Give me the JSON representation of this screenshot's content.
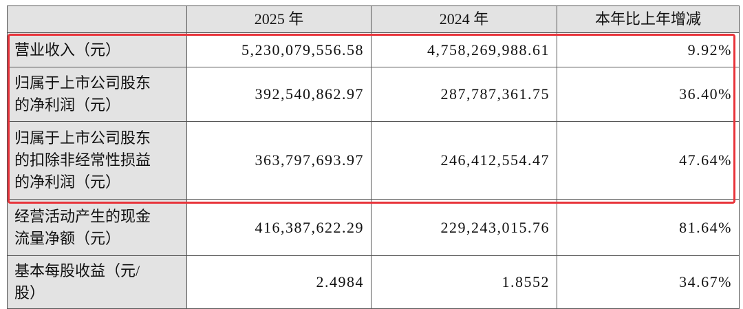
{
  "table": {
    "header": [
      "2025 年",
      "2024 年",
      "本年比上年增减"
    ],
    "rows": [
      {
        "label": [
          "营业收入（元）"
        ],
        "cells": [
          "5,230,079,556.58",
          "4,758,269,988.61",
          "9.92%"
        ]
      },
      {
        "label": [
          "归属于上市公司股东",
          "的净利润（元）"
        ],
        "cells": [
          "392,540,862.97",
          "287,787,361.75",
          "36.40%"
        ]
      },
      {
        "label": [
          "归属于上市公司股东",
          "的扣除非经常性损益",
          "的净利润（元）"
        ],
        "cells": [
          "363,797,693.97",
          "246,412,554.47",
          "47.64%"
        ]
      },
      {
        "label": [
          "经营活动产生的现金",
          "流量净额（元）"
        ],
        "cells": [
          "416,387,622.29",
          "229,243,015.76",
          "81.64%"
        ]
      },
      {
        "label": [
          "基本每股收益（元/",
          "股）"
        ],
        "cells": [
          "2.4984",
          "1.8552",
          "34.67%"
        ]
      }
    ]
  }
}
